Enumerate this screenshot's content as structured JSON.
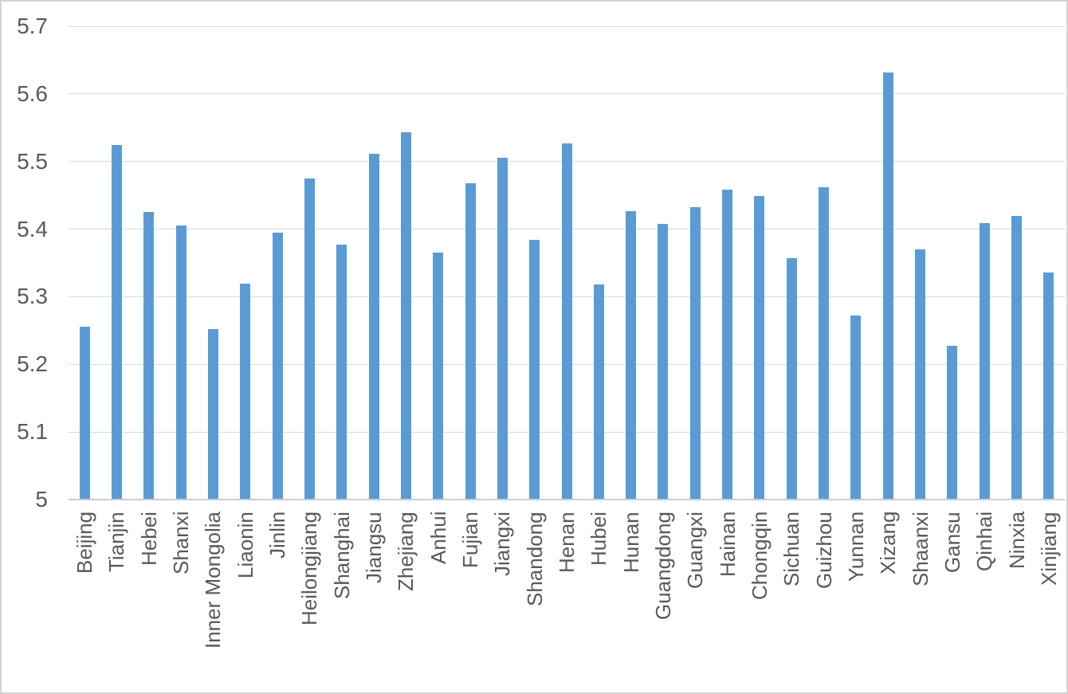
{
  "chart_data": {
    "type": "bar",
    "title": "",
    "xlabel": "",
    "ylabel": "",
    "legend": "none",
    "grid": true,
    "ylim": [
      5.0,
      5.7
    ],
    "yticks": [
      5.0,
      5.1,
      5.2,
      5.3,
      5.4,
      5.5,
      5.6,
      5.7
    ],
    "ytick_labels": [
      "5",
      "5.1",
      "5.2",
      "5.3",
      "5.4",
      "5.5",
      "5.6",
      "5.7"
    ],
    "categories": [
      "Beijing",
      "Tianjin",
      "Hebei",
      "Shanxi",
      "Inner Mongolia",
      "Liaonin",
      "Jinlin",
      "Heilongjiang",
      "Shanghai",
      "Jiangsu",
      "Zhejiang",
      "Anhui",
      "Fujian",
      "Jiangxi",
      "Shandong",
      "Henan",
      "Hubei",
      "Hunan",
      "Guangdong",
      "Guangxi",
      "Hainan",
      "Chongqin",
      "Sichuan",
      "Guizhou",
      "Yunnan",
      "Xizang",
      "Shaanxi",
      "Gansu",
      "Qinhai",
      "Ninxia",
      "Xinjiang"
    ],
    "values": [
      5.256,
      5.525,
      5.426,
      5.405,
      5.252,
      5.319,
      5.395,
      5.475,
      5.377,
      5.512,
      5.543,
      5.365,
      5.468,
      5.506,
      5.384,
      5.527,
      5.318,
      5.427,
      5.408,
      5.432,
      5.458,
      5.449,
      5.357,
      5.462,
      5.272,
      5.632,
      5.37,
      5.227,
      5.409,
      5.419,
      5.336
    ],
    "colors": {
      "bar": "#5B9BD5",
      "gridline": "#D9D9D9",
      "axis_line": "#CDCDCD",
      "tick_label": "#595959",
      "frame_border": "#D2D2D2",
      "background": "#FFFFFF"
    }
  }
}
